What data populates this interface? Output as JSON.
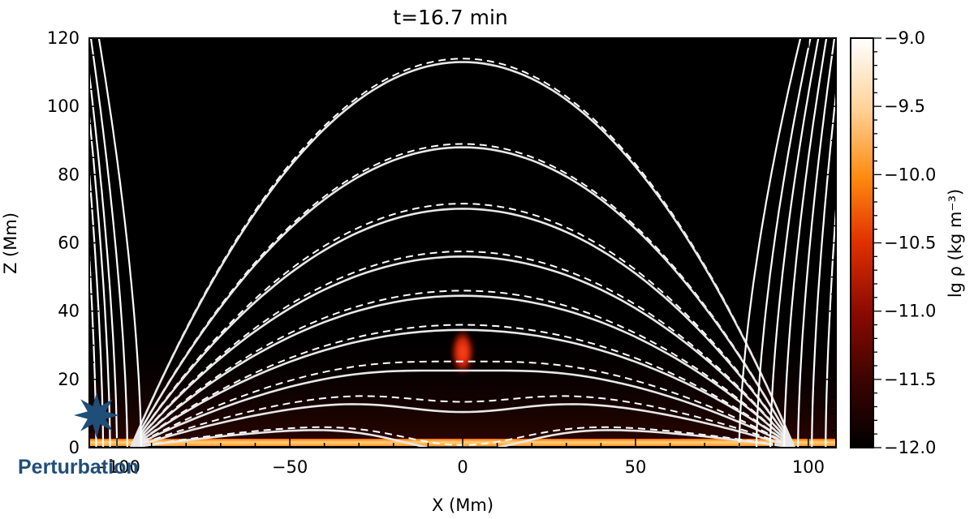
{
  "chart_data": {
    "type": "heatmap",
    "title": "t=16.7 min",
    "xlabel": "X (Mm)",
    "ylabel": "Z (Mm)",
    "xlim": [
      -108,
      108
    ],
    "ylim": [
      0,
      120
    ],
    "x_ticks": [
      -100,
      -50,
      0,
      50,
      100
    ],
    "x_tick_labels": [
      "−100",
      "−50",
      "0",
      "50",
      "100"
    ],
    "y_ticks": [
      0,
      20,
      40,
      60,
      80,
      100,
      120
    ],
    "y_tick_labels": [
      "0",
      "20",
      "40",
      "60",
      "80",
      "100",
      "120"
    ],
    "colorbar": {
      "label": "lg ρ (kg m⁻³)",
      "range": [
        -12.0,
        -9.0
      ],
      "ticks": [
        -12.0,
        -11.5,
        -11.0,
        -10.5,
        -10.0,
        -9.5,
        -9.0
      ],
      "tick_labels": [
        "−12.0",
        "−11.5",
        "−11.0",
        "−10.5",
        "−10.0",
        "−9.5",
        "−9.0"
      ],
      "colormap": [
        "#000000",
        "#3a0400",
        "#8b0a00",
        "#e03000",
        "#ff8a10",
        "#ffd39a",
        "#ffffff"
      ]
    },
    "closed_field_lines": [
      {
        "apex_z": 113,
        "dashed_apex_z": 114
      },
      {
        "apex_z": 88,
        "dashed_apex_z": 89
      },
      {
        "apex_z": 70,
        "dashed_apex_z": 71.5
      },
      {
        "apex_z": 56,
        "dashed_apex_z": 57.5
      },
      {
        "apex_z": 44.5,
        "dashed_apex_z": 46
      },
      {
        "apex_z": 34.5,
        "dashed_apex_z": 36
      },
      {
        "apex_z": 24.5,
        "dashed_apex_z": 27
      },
      {
        "apex_z": 15.5,
        "dashed_apex_z": 18
      },
      {
        "apex_z": 7,
        "dashed_apex_z": 8
      }
    ],
    "open_field_lines_left_footpoints": [
      -93,
      -97,
      -100,
      -102,
      -104,
      -106,
      -108
    ],
    "open_field_lines_right_footpoints": [
      80,
      85,
      89,
      93,
      97,
      101,
      105,
      108
    ],
    "dense_blob": {
      "x": 0,
      "z_center": 28,
      "z_half_height": 7,
      "x_half_width": 3.5,
      "lg_rho": -10.6
    },
    "chromosphere": {
      "z_top": 2,
      "lg_rho": -9.4
    },
    "annotation": {
      "text": "Perturbation",
      "marker": "star-icon",
      "x": -104,
      "z": 9,
      "color": "#1f4e79"
    }
  }
}
